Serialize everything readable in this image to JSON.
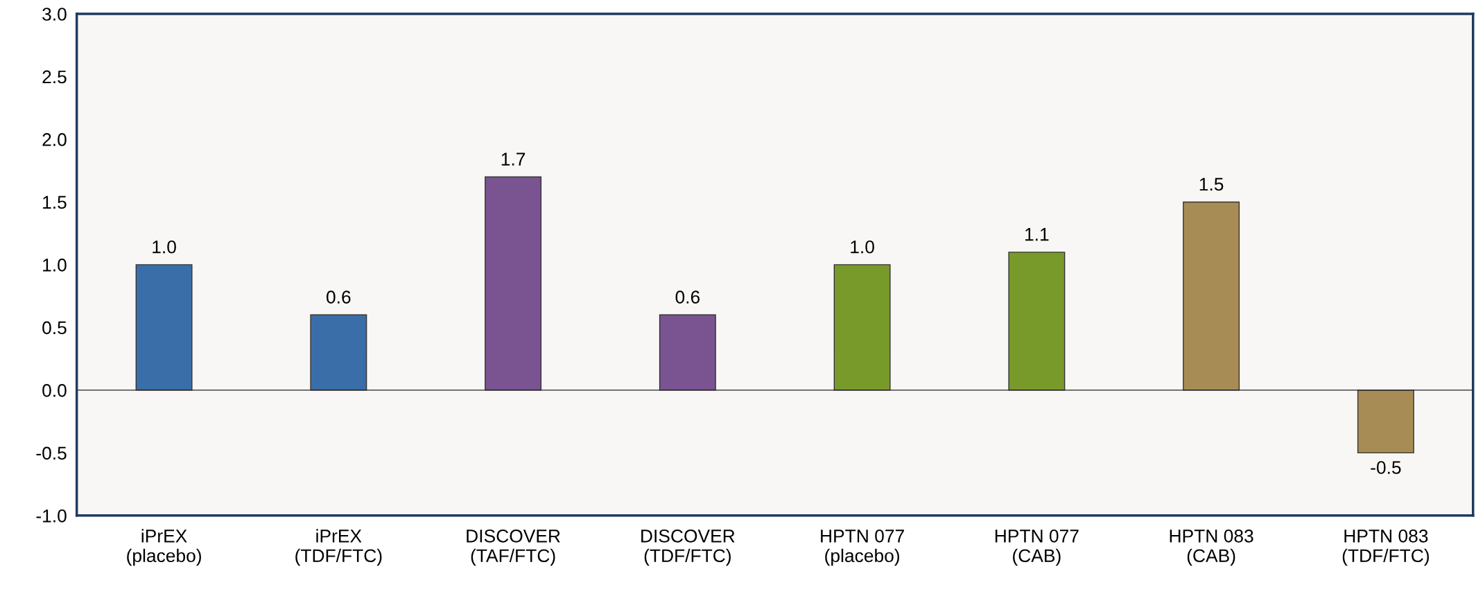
{
  "chart_data": {
    "type": "bar",
    "categories": [
      "iPrEX\n(placebo)",
      "iPrEX\n(TDF/FTC)",
      "DISCOVER\n(TAF/FTC)",
      "DISCOVER\n(TDF/FTC)",
      "HPTN 077\n(placebo)",
      "HPTN 077\n(CAB)",
      "HPTN 083\n(CAB)",
      "HPTN 083\n(TDF/FTC)"
    ],
    "values": [
      1.0,
      0.6,
      1.7,
      0.6,
      1.0,
      1.1,
      1.5,
      -0.5
    ],
    "colors": [
      "#3a6ea8",
      "#3a6ea8",
      "#7a5490",
      "#7a5490",
      "#789a2a",
      "#789a2a",
      "#a88c55",
      "#a88c55"
    ],
    "value_labels": [
      "1.0",
      "0.6",
      "1.7",
      "0.6",
      "1.0",
      "1.1",
      "1.5",
      "-0.5"
    ],
    "ylim": [
      -1.0,
      3.0
    ],
    "yticks": [
      {
        "value": -1.0,
        "label": "-1.0"
      },
      {
        "value": -0.5,
        "label": "-0.5"
      },
      {
        "value": 0.0,
        "label": "0.0"
      },
      {
        "value": 0.5,
        "label": "0.5"
      },
      {
        "value": 1.0,
        "label": "1.0"
      },
      {
        "value": 1.5,
        "label": "1.5"
      },
      {
        "value": 2.0,
        "label": "2.0"
      },
      {
        "value": 2.5,
        "label": "2.5"
      },
      {
        "value": 3.0,
        "label": "3.0"
      }
    ],
    "ref_lines": [
      {
        "axis": "y",
        "value": 0.0,
        "color": "#222222"
      }
    ]
  }
}
